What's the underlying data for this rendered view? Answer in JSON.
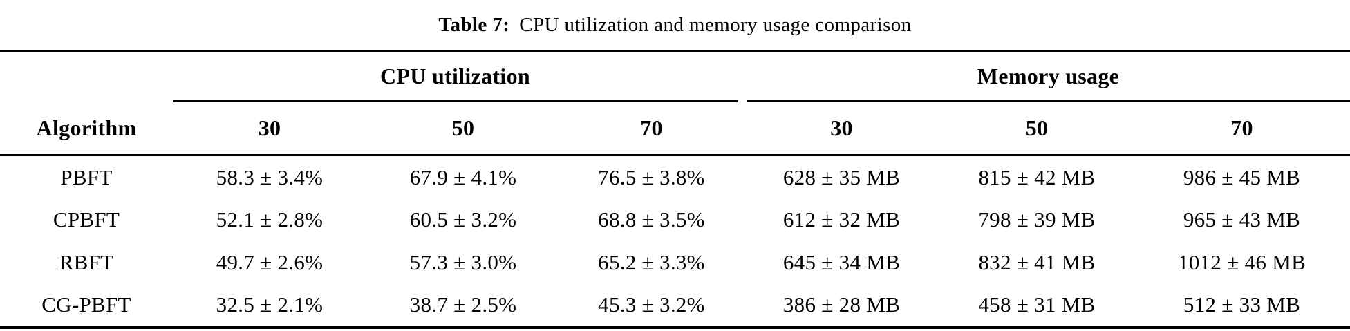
{
  "title": {
    "label": "Table 7:",
    "text": "CPU utilization and memory usage comparison"
  },
  "table": {
    "groups": [
      {
        "label": "CPU utilization"
      },
      {
        "label": "Memory usage"
      }
    ],
    "col_headers": [
      "Algorithm",
      "30",
      "50",
      "70",
      "30",
      "50",
      "70"
    ],
    "rows": [
      [
        "PBFT",
        "58.3 ± 3.4%",
        "67.9 ± 4.1%",
        "76.5 ± 3.8%",
        "628 ± 35 MB",
        "815 ± 42 MB",
        "986 ± 45 MB"
      ],
      [
        "CPBFT",
        "52.1 ± 2.8%",
        "60.5 ± 3.2%",
        "68.8 ± 3.5%",
        "612 ± 32 MB",
        "798 ± 39 MB",
        "965 ± 43 MB"
      ],
      [
        "RBFT",
        "49.7 ± 2.6%",
        "57.3 ± 3.0%",
        "65.2 ± 3.3%",
        "645 ± 34 MB",
        "832 ± 41 MB",
        "1012 ± 46 MB"
      ],
      [
        "CG-PBFT",
        "32.5 ± 2.1%",
        "38.7 ± 2.5%",
        "45.3 ± 3.2%",
        "386 ± 28 MB",
        "458 ± 31 MB",
        "512 ± 33 MB"
      ]
    ]
  },
  "colors": {
    "text": "#000000",
    "background": "#ffffff",
    "rule": "#000000"
  },
  "chart_data": {
    "type": "table",
    "title": "Table 7: CPU utilization and memory usage comparison",
    "column_groups": [
      "CPU utilization",
      "Memory usage"
    ],
    "group_columns": [
      "30",
      "50",
      "70"
    ],
    "row_labels": [
      "PBFT",
      "CPBFT",
      "RBFT",
      "CG-PBFT"
    ],
    "cpu_utilization_percent": {
      "PBFT": [
        58.3,
        67.9,
        76.5
      ],
      "CPBFT": [
        52.1,
        60.5,
        68.8
      ],
      "RBFT": [
        49.7,
        57.3,
        65.2
      ],
      "CG-PBFT": [
        32.5,
        38.7,
        45.3
      ]
    },
    "cpu_utilization_std": {
      "PBFT": [
        3.4,
        4.1,
        3.8
      ],
      "CPBFT": [
        2.8,
        3.2,
        3.5
      ],
      "RBFT": [
        2.6,
        3.0,
        3.3
      ],
      "CG-PBFT": [
        2.1,
        2.5,
        3.2
      ]
    },
    "memory_usage_mb": {
      "PBFT": [
        628,
        815,
        986
      ],
      "CPBFT": [
        612,
        798,
        965
      ],
      "RBFT": [
        645,
        832,
        1012
      ],
      "CG-PBFT": [
        386,
        458,
        512
      ]
    },
    "memory_usage_std_mb": {
      "PBFT": [
        35,
        42,
        45
      ],
      "CPBFT": [
        32,
        39,
        43
      ],
      "RBFT": [
        34,
        41,
        46
      ],
      "CG-PBFT": [
        28,
        31,
        33
      ]
    }
  }
}
